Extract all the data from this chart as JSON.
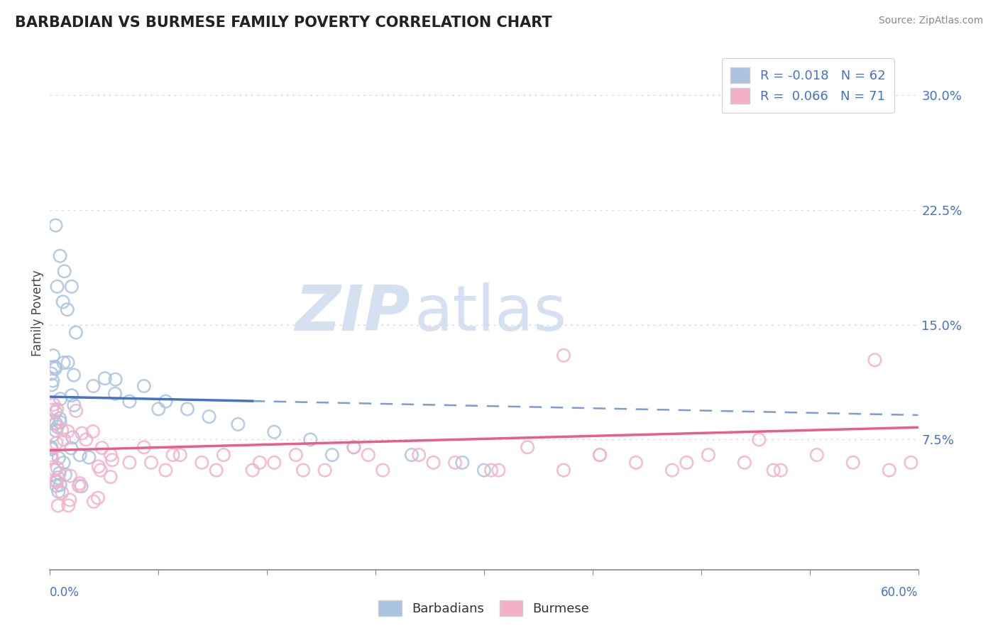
{
  "title": "BARBADIAN VS BURMESE FAMILY POVERTY CORRELATION CHART",
  "source_text": "Source: ZipAtlas.com",
  "ylabel": "Family Poverty",
  "yticks": [
    0.075,
    0.15,
    0.225,
    0.3
  ],
  "ytick_labels": [
    "7.5%",
    "15.0%",
    "22.5%",
    "30.0%"
  ],
  "xlim": [
    0.0,
    0.6
  ],
  "ylim": [
    -0.01,
    0.325
  ],
  "legend_r_barbadian": "-0.018",
  "legend_n_barbadian": "62",
  "legend_r_burmese": "0.066",
  "legend_n_burmese": "71",
  "barbadian_color": "#aac4e0",
  "burmese_color": "#f4b0c8",
  "barbadian_line_color": "#4472c4",
  "burmese_line_color": "#e85d8a",
  "tick_label_color": "#4472c4",
  "background_color": "#ffffff",
  "watermark_zip": "ZIP",
  "watermark_atlas": "atlas",
  "grid_color": "#d0d8e8",
  "bottom_axis_color": "#888888"
}
